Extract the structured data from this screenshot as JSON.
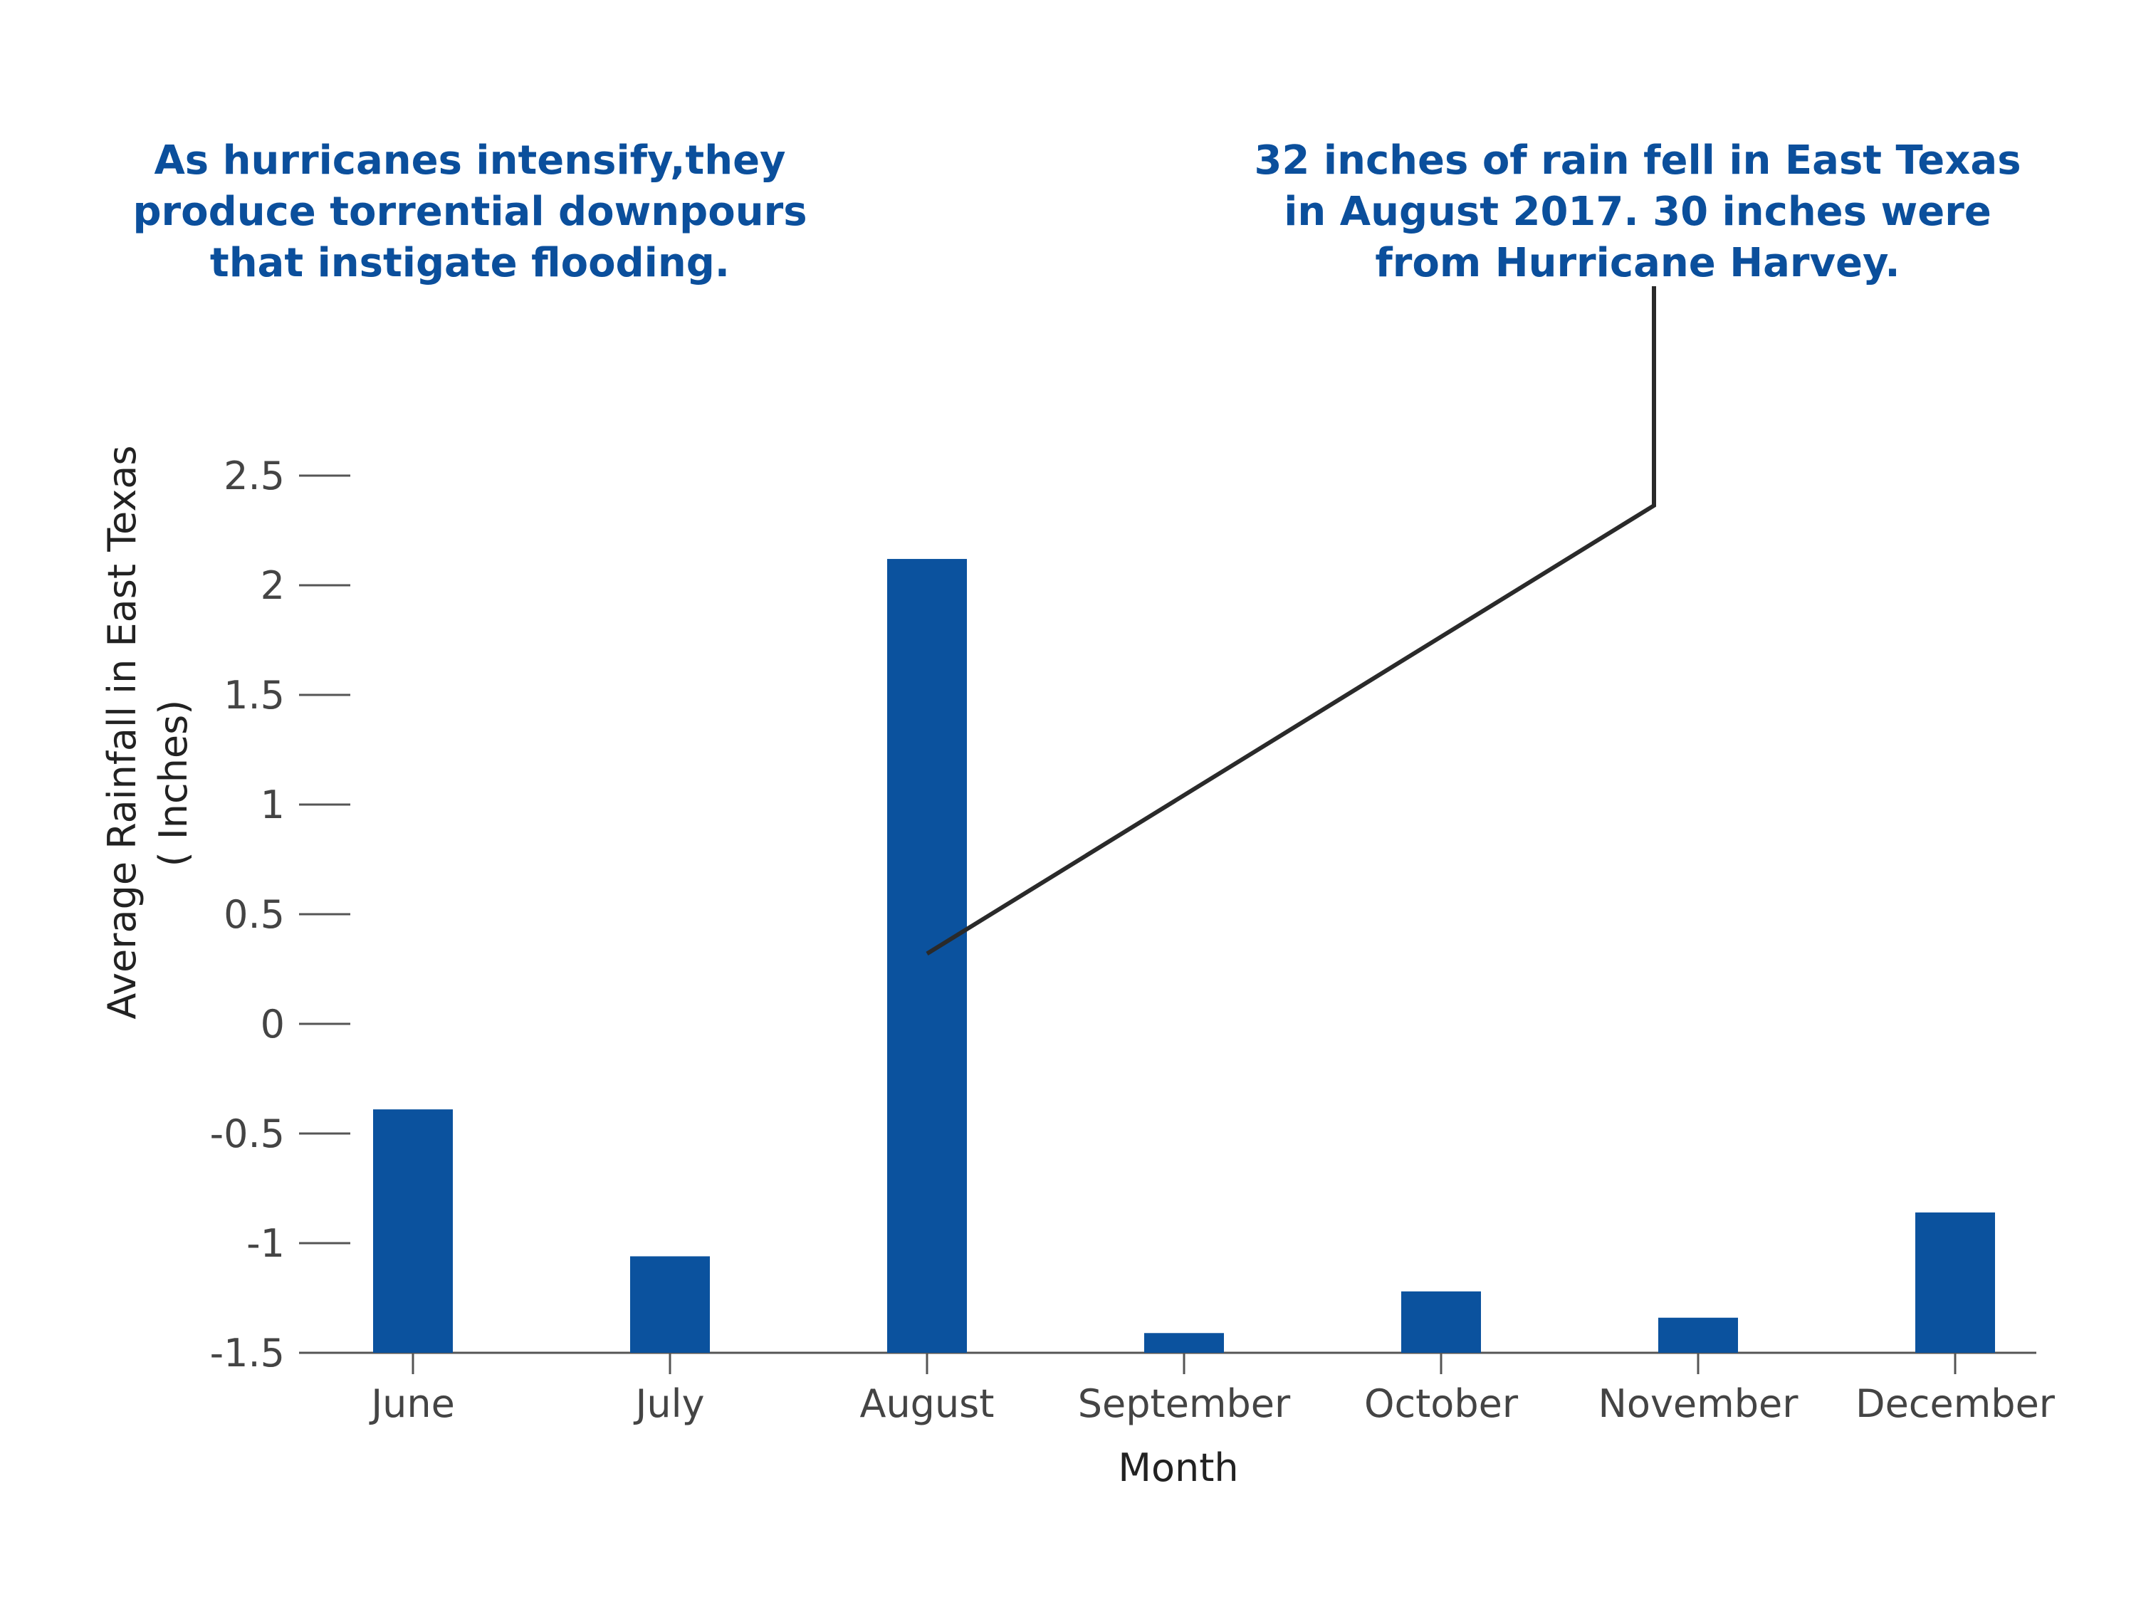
{
  "annotations": [
    {
      "lines": [
        "As hurricanes intensify,they",
        "produce torrential downpours",
        "that instigate flooding."
      ]
    },
    {
      "lines": [
        "32 inches of rain fell in East Texas",
        "in August 2017. 30 inches were",
        "from Hurricane Harvey."
      ]
    }
  ],
  "chart_data": {
    "type": "bar",
    "title": "",
    "xlabel": "Month",
    "ylabel": [
      "Average Rainfall in East Texas",
      "( Inches)"
    ],
    "categories": [
      "June",
      "July",
      "August",
      "September",
      "October",
      "November",
      "December"
    ],
    "values": [
      -0.39,
      -1.06,
      2.12,
      -1.41,
      -1.22,
      -1.34,
      -0.86
    ],
    "baseline": -1.5,
    "ylim": [
      -1.5,
      2.5
    ],
    "yticks": [
      -1.5,
      -1,
      -0.5,
      0,
      0.5,
      1,
      1.5,
      2,
      2.5
    ],
    "ytick_labels": [
      "-1.5",
      "-1",
      "-0.5",
      "0",
      "0.5",
      "1",
      "1.5",
      "2",
      "2.5"
    ],
    "grid": false,
    "bar_color": "#0b529e",
    "axis_color": "#555555",
    "callout_color": "#2a2a2a",
    "callout_target": {
      "category": "August",
      "value": 0.32
    }
  }
}
